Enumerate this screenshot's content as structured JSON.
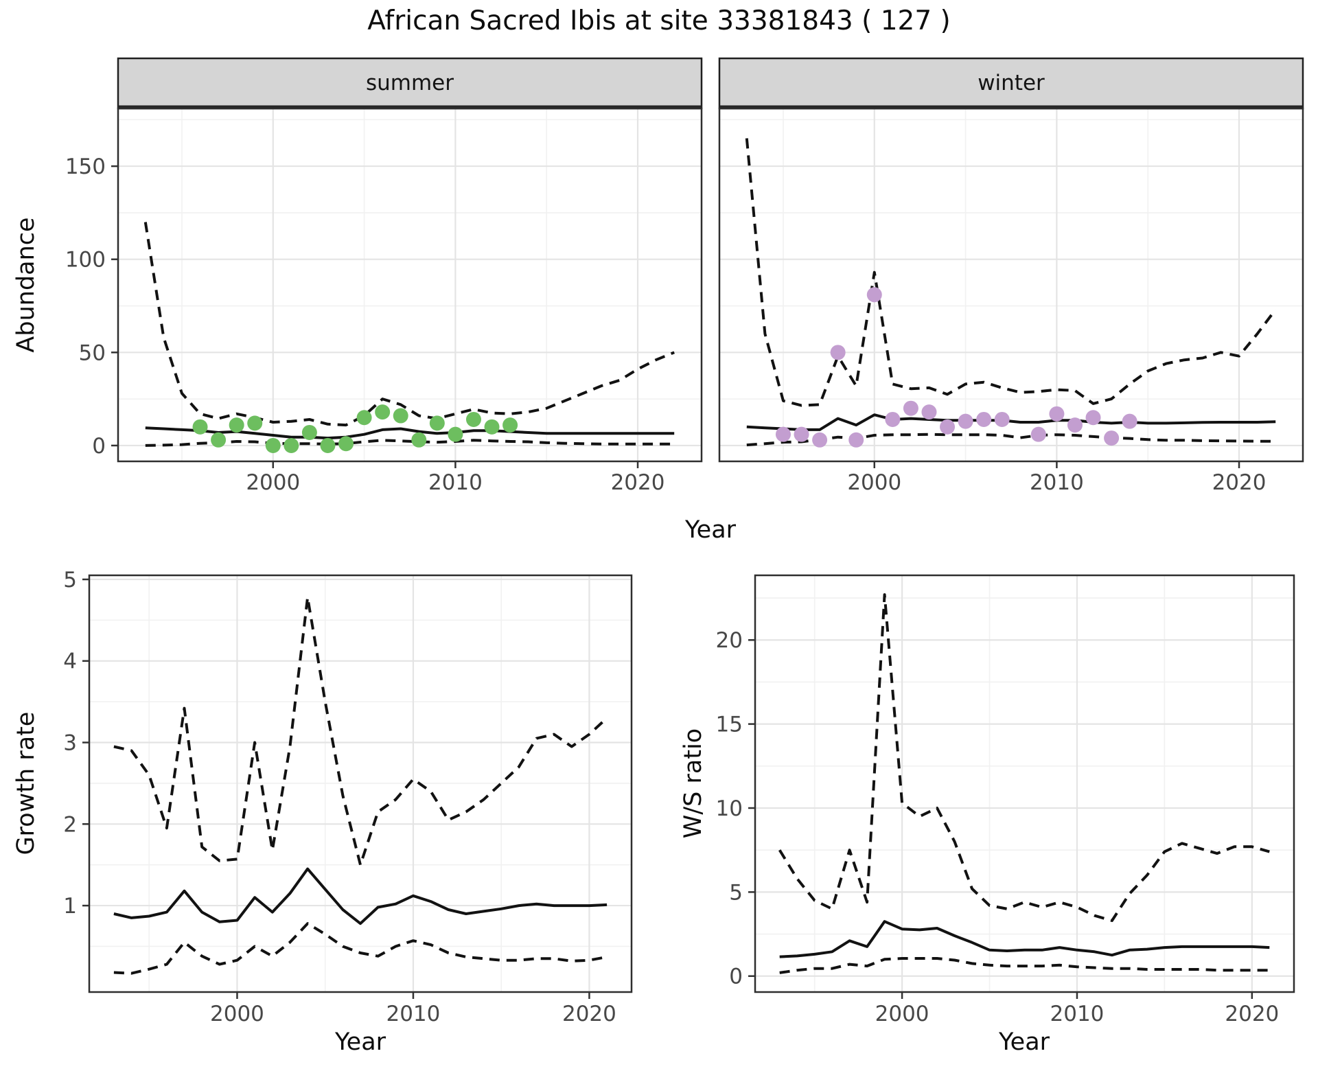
{
  "title": "African Sacred Ibis at site 33381843 ( 127 )",
  "labels": {
    "facet_summer": "summer",
    "facet_winter": "winter",
    "abundance_axis": "Abundance",
    "growth_axis": "Growth rate",
    "ws_axis": "W/S ratio",
    "year_axis_top": "Year",
    "year_axis_bottom_left": "Year",
    "year_axis_bottom_right": "Year"
  },
  "colors": {
    "summer_point": "#6dbe5f",
    "winter_point": "#c39ed0",
    "fit_line": "#121212",
    "ci_line": "#121212",
    "strip_fill": "#d5d5d5",
    "panel_border": "#2e2e2e",
    "grid_major": "#e4e4e4",
    "grid_minor": "#f1f1f1",
    "tick_text": "#474747"
  },
  "chart_data": [
    {
      "id": "abundance_summer",
      "type": "line",
      "facet_label": "summer",
      "xlabel": "Year",
      "ylabel": "Abundance",
      "xlim": [
        1991.5,
        2023.5
      ],
      "ylim": [
        -8.5,
        181
      ],
      "xticks": [
        2000,
        2010,
        2020
      ],
      "xticks_minor": [
        1995,
        2005,
        2015
      ],
      "yticks": [
        0,
        50,
        100,
        150
      ],
      "yticks_minor": [
        25,
        75,
        125,
        175
      ],
      "series": [
        {
          "name": "ci_upper",
          "style": "dashed",
          "x": [
            1993,
            1994,
            1995,
            1996,
            1997,
            1998,
            1999,
            2000,
            2001,
            2002,
            2003,
            2004,
            2005,
            2006,
            2007,
            2008,
            2009,
            2010,
            2011,
            2012,
            2013,
            2014,
            2015,
            2016,
            2017,
            2018,
            2019,
            2020,
            2021,
            2022
          ],
          "y": [
            120,
            58,
            28,
            17,
            14.5,
            17,
            15,
            12.5,
            13,
            14,
            11.5,
            11,
            16,
            25,
            22,
            16,
            14.5,
            17,
            19.5,
            17.5,
            17,
            18,
            20,
            24,
            28,
            32,
            35,
            41,
            46,
            50
          ]
        },
        {
          "name": "ci_lower",
          "style": "dashed",
          "x": [
            1993,
            1994,
            1995,
            1996,
            1997,
            1998,
            1999,
            2000,
            2001,
            2002,
            2003,
            2004,
            2005,
            2006,
            2007,
            2008,
            2009,
            2010,
            2011,
            2012,
            2013,
            2014,
            2015,
            2016,
            2017,
            2018,
            2019,
            2020,
            2021,
            2022
          ],
          "y": [
            0,
            0.2,
            0.5,
            1.2,
            1.5,
            2.2,
            2,
            1.2,
            1,
            1,
            0.8,
            1,
            2,
            2.8,
            2.5,
            2,
            1.8,
            2.2,
            2.8,
            2.5,
            2.2,
            2,
            1.5,
            1.2,
            1,
            0.8,
            0.8,
            0.8,
            0.8,
            0.8
          ]
        },
        {
          "name": "median_fit",
          "style": "solid",
          "x": [
            1993,
            1994,
            1995,
            1996,
            1997,
            1998,
            1999,
            2000,
            2001,
            2002,
            2003,
            2004,
            2005,
            2006,
            2007,
            2008,
            2009,
            2010,
            2011,
            2012,
            2013,
            2014,
            2015,
            2016,
            2017,
            2018,
            2019,
            2020,
            2021,
            2022
          ],
          "y": [
            9.5,
            9,
            8.5,
            8,
            7,
            7.5,
            6.5,
            5.5,
            4.5,
            4.5,
            4,
            4.5,
            6,
            8.5,
            9,
            7.5,
            6.5,
            7,
            8,
            8,
            7.5,
            7,
            6.5,
            6.5,
            6.5,
            6.5,
            6.5,
            6.5,
            6.5,
            6.5
          ]
        },
        {
          "name": "observed",
          "style": "points",
          "color_key": "summer_point",
          "x": [
            1996,
            1997,
            1998,
            1999,
            2000,
            2001,
            2002,
            2003,
            2004,
            2005,
            2006,
            2007,
            2008,
            2009,
            2010,
            2011,
            2012,
            2013
          ],
          "y": [
            10,
            3,
            11,
            12,
            0,
            0,
            7,
            0,
            1,
            15,
            18,
            16,
            3,
            12,
            6,
            14,
            10,
            11
          ]
        }
      ]
    },
    {
      "id": "abundance_winter",
      "type": "line",
      "facet_label": "winter",
      "xlabel": "Year",
      "ylabel": "Abundance",
      "xlim": [
        1991.5,
        2023.5
      ],
      "ylim": [
        -8.5,
        181
      ],
      "xticks": [
        2000,
        2010,
        2020
      ],
      "xticks_minor": [
        1995,
        2005,
        2015
      ],
      "yticks": [
        0,
        50,
        100,
        150
      ],
      "yticks_minor": [
        25,
        75,
        125,
        175
      ],
      "series": [
        {
          "name": "ci_upper",
          "style": "dashed",
          "x": [
            1993,
            1994,
            1995,
            1996,
            1997,
            1998,
            1999,
            2000,
            2001,
            2002,
            2003,
            2004,
            2005,
            2006,
            2007,
            2008,
            2009,
            2010,
            2011,
            2012,
            2013,
            2014,
            2015,
            2016,
            2017,
            2018,
            2019,
            2020,
            2021,
            2022
          ],
          "y": [
            165,
            60,
            24,
            21.5,
            22,
            48,
            32,
            93,
            33,
            30.5,
            31,
            27.5,
            33,
            34,
            31,
            28.5,
            29,
            30,
            29.5,
            22.5,
            25,
            33,
            40,
            44,
            46,
            47,
            50,
            48,
            60,
            73
          ]
        },
        {
          "name": "ci_lower",
          "style": "dashed",
          "x": [
            1993,
            1994,
            1995,
            1996,
            1997,
            1998,
            1999,
            2000,
            2001,
            2002,
            2003,
            2004,
            2005,
            2006,
            2007,
            2008,
            2009,
            2010,
            2011,
            2012,
            2013,
            2014,
            2015,
            2016,
            2017,
            2018,
            2019,
            2020,
            2021,
            2022
          ],
          "y": [
            0.3,
            1,
            1.8,
            2,
            3.2,
            4.5,
            3.8,
            5.5,
            5.8,
            5.8,
            6,
            5.8,
            5.8,
            5.8,
            5.5,
            4.2,
            5.5,
            5.8,
            5.5,
            4.8,
            4.2,
            3.8,
            3.2,
            2.8,
            2.8,
            2.6,
            2.5,
            2.4,
            2.3,
            2.3
          ]
        },
        {
          "name": "median_fit",
          "style": "solid",
          "x": [
            1993,
            1994,
            1995,
            1996,
            1997,
            1998,
            1999,
            2000,
            2001,
            2002,
            2003,
            2004,
            2005,
            2006,
            2007,
            2008,
            2009,
            2010,
            2011,
            2012,
            2013,
            2014,
            2015,
            2016,
            2017,
            2018,
            2019,
            2020,
            2021,
            2022
          ],
          "y": [
            10,
            9.5,
            9,
            8.5,
            8.5,
            14.5,
            11,
            16.5,
            14,
            14.5,
            14,
            13.5,
            13.5,
            13.5,
            13.5,
            12.5,
            12.5,
            13.5,
            13.5,
            12.5,
            12,
            12.5,
            12,
            12,
            12.2,
            12.4,
            12.5,
            12.5,
            12.5,
            12.8
          ]
        },
        {
          "name": "observed",
          "style": "points",
          "color_key": "winter_point",
          "x": [
            1995,
            1996,
            1997,
            1998,
            1999,
            2000,
            2001,
            2002,
            2003,
            2004,
            2005,
            2006,
            2007,
            2009,
            2010,
            2011,
            2012,
            2013,
            2014
          ],
          "y": [
            6,
            6,
            3,
            50,
            3,
            81,
            14,
            20,
            18,
            10,
            13,
            14,
            14,
            6,
            17,
            11,
            15,
            4,
            13
          ]
        }
      ]
    },
    {
      "id": "growth",
      "type": "line",
      "facet_label": "",
      "xlabel": "Year",
      "ylabel": "Growth rate",
      "xlim": [
        1991.6,
        2022.4
      ],
      "ylim": [
        -0.06,
        5.05
      ],
      "xticks": [
        2000,
        2010,
        2020
      ],
      "xticks_minor": [
        1995,
        2005,
        2015
      ],
      "yticks": [
        1,
        2,
        3,
        4,
        5
      ],
      "yticks_minor": [
        0.5,
        1.5,
        2.5,
        3.5,
        4.5
      ],
      "series": [
        {
          "name": "ci_upper",
          "style": "dashed",
          "x": [
            1993,
            1994,
            1995,
            1996,
            1997,
            1998,
            1999,
            2000,
            2001,
            2002,
            2003,
            2004,
            2005,
            2006,
            2007,
            2008,
            2009,
            2010,
            2011,
            2012,
            2013,
            2014,
            2015,
            2016,
            2017,
            2018,
            2019,
            2020,
            2021
          ],
          "y": [
            2.95,
            2.9,
            2.6,
            1.95,
            3.42,
            1.72,
            1.55,
            1.57,
            3.0,
            1.68,
            2.95,
            4.78,
            3.5,
            2.35,
            1.5,
            2.15,
            2.3,
            2.55,
            2.4,
            2.05,
            2.15,
            2.3,
            2.5,
            2.7,
            3.05,
            3.1,
            2.95,
            3.1,
            3.3
          ]
        },
        {
          "name": "ci_lower",
          "style": "dashed",
          "x": [
            1993,
            1994,
            1995,
            1996,
            1997,
            1998,
            1999,
            2000,
            2001,
            2002,
            2003,
            2004,
            2005,
            2006,
            2007,
            2008,
            2009,
            2010,
            2011,
            2012,
            2013,
            2014,
            2015,
            2016,
            2017,
            2018,
            2019,
            2020,
            2021
          ],
          "y": [
            0.18,
            0.17,
            0.22,
            0.28,
            0.55,
            0.38,
            0.28,
            0.33,
            0.5,
            0.38,
            0.55,
            0.78,
            0.65,
            0.5,
            0.42,
            0.38,
            0.5,
            0.57,
            0.52,
            0.42,
            0.37,
            0.35,
            0.33,
            0.33,
            0.35,
            0.35,
            0.32,
            0.33,
            0.37
          ]
        },
        {
          "name": "median_fit",
          "style": "solid",
          "x": [
            1993,
            1994,
            1995,
            1996,
            1997,
            1998,
            1999,
            2000,
            2001,
            2002,
            2003,
            2004,
            2005,
            2006,
            2007,
            2008,
            2009,
            2010,
            2011,
            2012,
            2013,
            2014,
            2015,
            2016,
            2017,
            2018,
            2019,
            2020,
            2021
          ],
          "y": [
            0.9,
            0.85,
            0.87,
            0.92,
            1.18,
            0.92,
            0.8,
            0.82,
            1.1,
            0.92,
            1.15,
            1.45,
            1.2,
            0.95,
            0.78,
            0.98,
            1.02,
            1.12,
            1.05,
            0.95,
            0.9,
            0.93,
            0.96,
            1.0,
            1.02,
            1.0,
            1.0,
            1.0,
            1.01
          ]
        }
      ]
    },
    {
      "id": "ws_ratio",
      "type": "line",
      "facet_label": "",
      "xlabel": "Year",
      "ylabel": "W/S ratio",
      "xlim": [
        1991.6,
        2022.4
      ],
      "ylim": [
        -0.95,
        23.85
      ],
      "xticks": [
        2000,
        2010,
        2020
      ],
      "xticks_minor": [
        1995,
        2005,
        2015
      ],
      "yticks": [
        0,
        5,
        10,
        15,
        20
      ],
      "yticks_minor": [
        2.5,
        7.5,
        12.5,
        17.5,
        22.5
      ],
      "series": [
        {
          "name": "ci_upper",
          "style": "dashed",
          "x": [
            1993,
            1994,
            1995,
            1996,
            1997,
            1998,
            1999,
            2000,
            2001,
            2002,
            2003,
            2004,
            2005,
            2006,
            2007,
            2008,
            2009,
            2010,
            2011,
            2012,
            2013,
            2014,
            2015,
            2016,
            2017,
            2018,
            2019,
            2020,
            2021
          ],
          "y": [
            7.5,
            5.8,
            4.5,
            4.0,
            7.5,
            4.4,
            22.7,
            10.3,
            9.5,
            10.0,
            8.0,
            5.2,
            4.2,
            4.0,
            4.4,
            4.1,
            4.4,
            4.1,
            3.6,
            3.3,
            4.9,
            6.0,
            7.4,
            7.9,
            7.6,
            7.3,
            7.7,
            7.7,
            7.4
          ]
        },
        {
          "name": "ci_lower",
          "style": "dashed",
          "x": [
            1993,
            1994,
            1995,
            1996,
            1997,
            1998,
            1999,
            2000,
            2001,
            2002,
            2003,
            2004,
            2005,
            2006,
            2007,
            2008,
            2009,
            2010,
            2011,
            2012,
            2013,
            2014,
            2015,
            2016,
            2017,
            2018,
            2019,
            2020,
            2021
          ],
          "y": [
            0.2,
            0.35,
            0.45,
            0.45,
            0.7,
            0.6,
            1.0,
            1.05,
            1.05,
            1.05,
            0.95,
            0.75,
            0.65,
            0.6,
            0.6,
            0.6,
            0.65,
            0.55,
            0.5,
            0.45,
            0.45,
            0.4,
            0.4,
            0.4,
            0.4,
            0.35,
            0.35,
            0.35,
            0.35
          ]
        },
        {
          "name": "median_fit",
          "style": "solid",
          "x": [
            1993,
            1994,
            1995,
            1996,
            1997,
            1998,
            1999,
            2000,
            2001,
            2002,
            2003,
            2004,
            2005,
            2006,
            2007,
            2008,
            2009,
            2010,
            2011,
            2012,
            2013,
            2014,
            2015,
            2016,
            2017,
            2018,
            2019,
            2020,
            2021
          ],
          "y": [
            1.15,
            1.2,
            1.3,
            1.45,
            2.1,
            1.75,
            3.25,
            2.8,
            2.75,
            2.85,
            2.4,
            2.0,
            1.55,
            1.5,
            1.55,
            1.55,
            1.7,
            1.55,
            1.45,
            1.25,
            1.55,
            1.6,
            1.7,
            1.75,
            1.75,
            1.75,
            1.75,
            1.75,
            1.7
          ]
        }
      ]
    }
  ]
}
